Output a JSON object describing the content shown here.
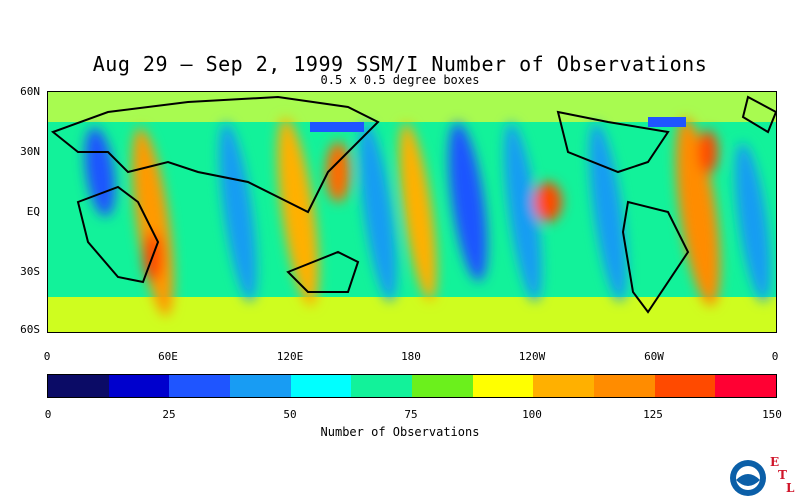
{
  "title": "Aug 29 – Sep 2, 1999 SSM/I Number of Observations",
  "subtitle": "0.5 x 0.5 degree boxes",
  "lat_labels": [
    "60N",
    "30N",
    "EQ",
    "30S",
    "60S"
  ],
  "lon_labels": [
    "0",
    "60E",
    "120E",
    "180",
    "120W",
    "60W",
    "0"
  ],
  "colorbar": {
    "title": "Number of Observations",
    "tick_labels": [
      "0",
      "25",
      "50",
      "75",
      "100",
      "125",
      "150"
    ],
    "colors": [
      "#0b0b66",
      "#0000cd",
      "#1f55ff",
      "#189cf3",
      "#00ffff",
      "#12f29a",
      "#6bf01c",
      "#ffff00",
      "#ffb000",
      "#ff8c00",
      "#ff4a00",
      "#ff0033"
    ]
  },
  "logo": {
    "text": "NOAA",
    "letters": [
      "E",
      "T",
      "L"
    ]
  }
}
